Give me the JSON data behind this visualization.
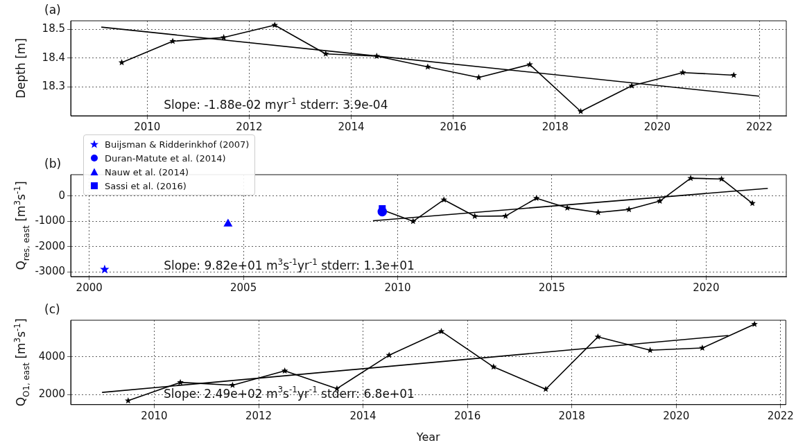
{
  "chart_data": [
    {
      "type": "line",
      "title": "(a)",
      "ylabel": "Depth [m]",
      "marker": "star",
      "grid": true,
      "xlim": [
        2008.5,
        2022.53
      ],
      "xticks": [
        2010,
        2012,
        2014,
        2016,
        2018,
        2020,
        2022
      ],
      "ylim": [
        18.2,
        18.53
      ],
      "yticks": [
        18.3,
        18.4,
        18.5
      ],
      "annotations": [
        "Slope: -1.88e-02 myr$^{-1}$ stderr: 3.9e-04"
      ],
      "series": [
        {
          "color": "#000000",
          "x": [
            2009.5,
            2010.5,
            2011.5,
            2012.5,
            2013.5,
            2014.5,
            2015.5,
            2016.5,
            2017.5,
            2018.5,
            2019.5,
            2020.5,
            2021.5
          ],
          "values": [
            18.385,
            18.459,
            18.472,
            18.515,
            18.415,
            18.407,
            18.37,
            18.333,
            18.378,
            18.215,
            18.304,
            18.35,
            18.341
          ]
        },
        {
          "type": "line",
          "marker": "none",
          "color": "#000000",
          "x": [
            2009.1,
            2022
          ],
          "values": [
            18.508,
            18.268
          ]
        }
      ]
    },
    {
      "type": "line",
      "title": "(b)",
      "ylabel": "Q$_{res, east}$ [m$^{3}$s$^{-1}$]",
      "marker": "star",
      "grid": true,
      "legend": "top left",
      "xlim": [
        1999.4,
        2022.6
      ],
      "xticks": [
        2000,
        2005,
        2010,
        2015,
        2020
      ],
      "ylim": [
        -3180,
        840
      ],
      "yticks": [
        -3000,
        -2000,
        -1000,
        0
      ],
      "annotations": [
        "Slope: 9.82e+01 m$^{3}$s$^{-1}$yr$^{-1}$ stderr: 1.3e+01"
      ],
      "series": [
        {
          "color": "#000000",
          "x": [
            2009.5,
            2010.5,
            2011.5,
            2012.5,
            2013.5,
            2014.5,
            2015.5,
            2016.5,
            2017.5,
            2018.5,
            2019.5,
            2020.5,
            2021.5
          ],
          "values": [
            -550,
            -1000,
            -150,
            -800,
            -790,
            -90,
            -470,
            -650,
            -530,
            -200,
            700,
            670,
            -290
          ]
        },
        {
          "type": "line",
          "marker": "none",
          "color": "#000000",
          "x": [
            2009.2,
            2022
          ],
          "values": [
            -980,
            300
          ]
        },
        {
          "type": "scatter",
          "name": "Buijsman & Ridderinkhof (2007)",
          "marker": "star",
          "color": "#0000ff",
          "x": [
            2000.5
          ],
          "values": [
            -2900
          ]
        },
        {
          "type": "scatter",
          "name": "Duran-Matute et al. (2014)",
          "marker": "circle",
          "color": "#0000ff",
          "x": [
            2009.5
          ],
          "values": [
            -620
          ]
        },
        {
          "type": "scatter",
          "name": "Nauw et al. (2014)",
          "marker": "triangle",
          "color": "#0000ff",
          "x": [
            2004.5
          ],
          "values": [
            -1100
          ]
        },
        {
          "type": "scatter",
          "name": "Sassi et al. (2016)",
          "marker": "square",
          "color": "#0000ff",
          "x": [
            2009.5
          ],
          "values": [
            -500
          ]
        }
      ]
    },
    {
      "type": "line",
      "title": "(c)",
      "xlabel": "Year",
      "ylabel": "Q$_{O1, east}$ [m$^{3}$s$^{-1}$]",
      "marker": "star",
      "grid": true,
      "xlim": [
        2008.4,
        2022.1
      ],
      "xticks": [
        2010,
        2012,
        2014,
        2016,
        2018,
        2020,
        2022
      ],
      "ylim": [
        1470,
        5940
      ],
      "yticks": [
        2000,
        4000
      ],
      "annotations": [
        "Slope: 2.49e+02 m$^{3}$s$^{-1}$yr$^{-1}$ stderr: 6.8e+01"
      ],
      "series": [
        {
          "color": "#000000",
          "x": [
            2009.5,
            2010.5,
            2011.5,
            2012.5,
            2013.5,
            2014.5,
            2015.5,
            2016.5,
            2017.5,
            2018.5,
            2019.5,
            2020.5,
            2021.5
          ],
          "values": [
            1680,
            2650,
            2500,
            3260,
            2320,
            4090,
            5350,
            3470,
            2290,
            5060,
            4350,
            4470,
            5730
          ]
        },
        {
          "type": "line",
          "marker": "none",
          "color": "#000000",
          "x": [
            2009,
            2021
          ],
          "values": [
            2120,
            5130
          ]
        }
      ]
    }
  ]
}
